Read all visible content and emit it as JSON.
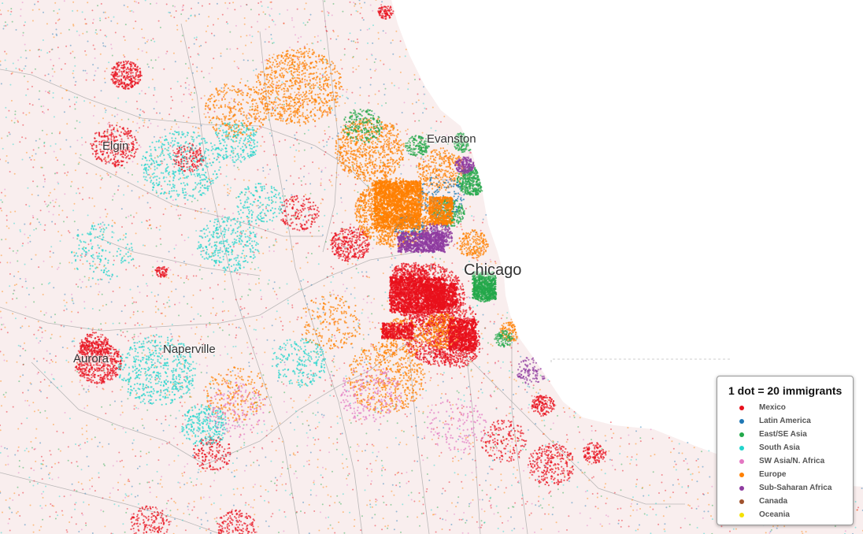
{
  "map": {
    "cities": [
      {
        "name": "Elgin",
        "id": "elgin"
      },
      {
        "name": "Evanston",
        "id": "evanston"
      },
      {
        "name": "Chicago",
        "id": "chicago"
      },
      {
        "name": "Naperville",
        "id": "naperville"
      },
      {
        "name": "Aurora",
        "id": "aurora"
      }
    ],
    "land_color": "#f9eeee",
    "water_color": "#ffffff"
  },
  "legend": {
    "title": "1 dot = 20 immigrants",
    "items": [
      {
        "label": "Mexico",
        "color": "#e8101c"
      },
      {
        "label": "Latin America",
        "color": "#1f77b4"
      },
      {
        "label": "East/SE Asia",
        "color": "#23a84a"
      },
      {
        "label": "South Asia",
        "color": "#22d4cc"
      },
      {
        "label": "SW Asia/N. Africa",
        "color": "#e377c2"
      },
      {
        "label": "Europe",
        "color": "#ff8000"
      },
      {
        "label": "Sub-Saharan Africa",
        "color": "#8e3ba0"
      },
      {
        "label": "Canada",
        "color": "#a0522d"
      },
      {
        "label": "Oceania",
        "color": "#f4e100"
      }
    ]
  }
}
